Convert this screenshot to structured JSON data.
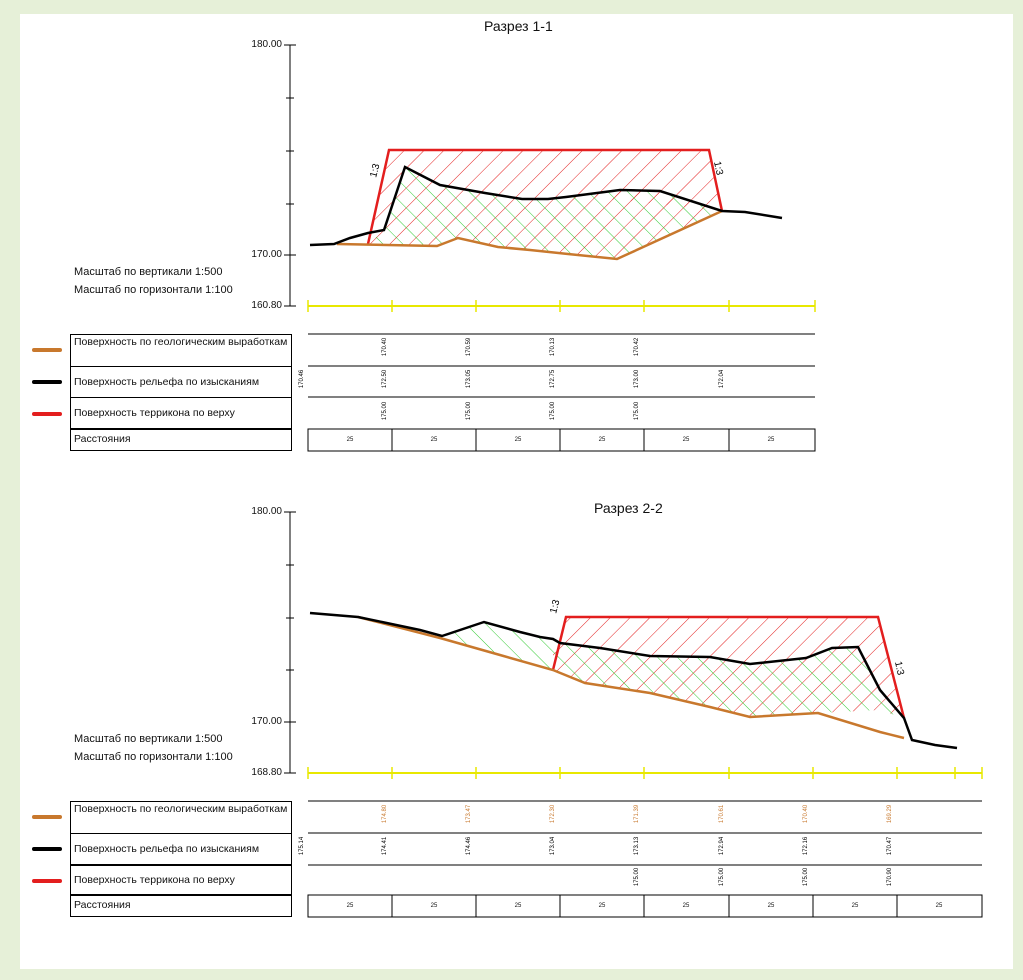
{
  "colors": {
    "background": "#e6f0d8",
    "sheet": "#ffffff",
    "geological": "#c8782d",
    "relief": "#000000",
    "terrikon": "#e31e1e",
    "baseline": "#e8e800",
    "cross_hatch": "#33cc33"
  },
  "legend_items": [
    {
      "key": "geological",
      "label": "Поверхность по геологическим выработкам"
    },
    {
      "key": "relief",
      "label": "Поверхность рельефа по изысканиям"
    },
    {
      "key": "terrikon",
      "label": "Поверхность террикона по верху"
    },
    {
      "key": "distance",
      "label": "Расстояния"
    }
  ],
  "scale_labels": {
    "vertical": "Масштаб по вертикали 1:500",
    "horizontal": "Масштаб по горизонтали 1:100"
  },
  "slope_label": "1:3",
  "sections": [
    {
      "title": "Разрез 1-1",
      "y_axis": {
        "top": "180.00",
        "mid": "170.00",
        "base": "160.80"
      },
      "geological_row": [
        "",
        "170.40",
        "170.59",
        "170.13",
        "170.42",
        "",
        ""
      ],
      "relief_row": [
        "170.46",
        "172.50",
        "173.05",
        "172.75",
        "173.00",
        "172.04",
        ""
      ],
      "terrikon_row": [
        "",
        "175.00",
        "175.00",
        "175.00",
        "175.00",
        "",
        ""
      ],
      "distances": [
        "25",
        "25",
        "25",
        "25",
        "25",
        "25"
      ]
    },
    {
      "title": "Разрез 2-2",
      "y_axis": {
        "top": "180.00",
        "mid": "170.00",
        "base": "168.80"
      },
      "geological_row": [
        "",
        "174.80",
        "173.47",
        "172.30",
        "171.39",
        "170.61",
        "170.40",
        "169.29",
        ""
      ],
      "relief_row": [
        "175.14",
        "174.41",
        "174.46",
        "173.04",
        "173.13",
        "172.94",
        "172.16",
        "170.47",
        ""
      ],
      "terrikon_row": [
        "",
        "",
        "",
        "",
        "175.00",
        "175.00",
        "175.00",
        "170.90",
        ""
      ],
      "distances": [
        "25",
        "25",
        "25",
        "25",
        "25",
        "25",
        "25",
        "25"
      ]
    }
  ]
}
